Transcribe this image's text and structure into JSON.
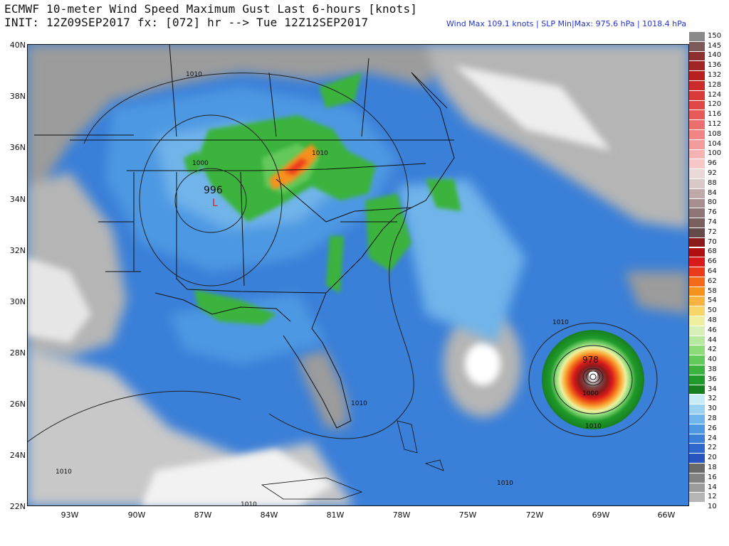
{
  "header": {
    "line1": "ECMWF 10-meter Wind Speed Maximum Gust Last 6-hours [knots]",
    "line2": "INIT: 12Z09SEP2017 fx: [072] hr --> Tue 12Z12SEP2017",
    "stats": "Wind Max 109.1 knots | SLP Min|Max: 975.6 hPa | 1018.4 hPa"
  },
  "axes": {
    "lat_labels": [
      "40N",
      "38N",
      "36N",
      "34N",
      "32N",
      "30N",
      "28N",
      "26N",
      "24N",
      "22N"
    ],
    "lon_labels": [
      "93W",
      "90W",
      "87W",
      "84W",
      "81W",
      "78W",
      "75W",
      "72W",
      "69W",
      "66W"
    ]
  },
  "isobars": {
    "labels": [
      "1010",
      "1010",
      "1000",
      "1010",
      "1010",
      "1010",
      "1010",
      "1010",
      "1000",
      "1010"
    ],
    "low_value": "996",
    "low_mark": "L",
    "storm_center_value": "978"
  },
  "legend": {
    "title": "",
    "values": [
      "150",
      "145",
      "140",
      "136",
      "132",
      "128",
      "124",
      "120",
      "116",
      "112",
      "108",
      "104",
      "100",
      "96",
      "92",
      "88",
      "84",
      "80",
      "76",
      "74",
      "72",
      "70",
      "68",
      "66",
      "64",
      "62",
      "58",
      "54",
      "50",
      "48",
      "46",
      "44",
      "42",
      "40",
      "38",
      "36",
      "34",
      "32",
      "30",
      "28",
      "26",
      "24",
      "22",
      "20",
      "18",
      "16",
      "14",
      "12",
      "10"
    ],
    "colors": [
      "#8a8a8a",
      "#7d5a5a",
      "#8b2f2f",
      "#a02525",
      "#b82020",
      "#cc2b2b",
      "#d93a3a",
      "#e04848",
      "#e65a5a",
      "#ec6f6f",
      "#f08585",
      "#f39c9c",
      "#f6b3b3",
      "#f7c8c8",
      "#e8d8d8",
      "#d8c8c8",
      "#bfaaaa",
      "#a88f8f",
      "#8f7575",
      "#7a5f5f",
      "#664a4a",
      "#8b1a1a",
      "#b01010",
      "#d91a1a",
      "#ec3b1a",
      "#f26a1a",
      "#f6921e",
      "#f9b340",
      "#f8d56a",
      "#eef0a0",
      "#d8f0b8",
      "#b6e8a0",
      "#8edb7a",
      "#63c95a",
      "#3bb33e",
      "#1f9a2a",
      "#187f20",
      "#c8ecf6",
      "#9ad0f0",
      "#6fb4ea",
      "#4e98e2",
      "#3a7fd8",
      "#2e68cc",
      "#2655bf",
      "#6a6a6a",
      "#828282",
      "#9b9b9b",
      "#b5b5b5",
      "#ffffff"
    ]
  }
}
